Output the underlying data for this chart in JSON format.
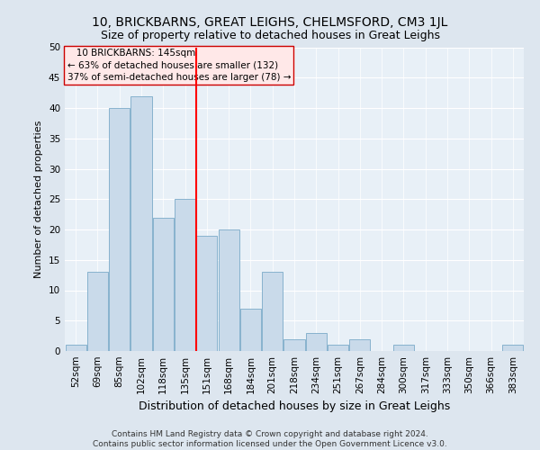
{
  "title": "10, BRICKBARNS, GREAT LEIGHS, CHELMSFORD, CM3 1JL",
  "subtitle": "Size of property relative to detached houses in Great Leighs",
  "xlabel": "Distribution of detached houses by size in Great Leighs",
  "ylabel": "Number of detached properties",
  "footnote1": "Contains HM Land Registry data © Crown copyright and database right 2024.",
  "footnote2": "Contains public sector information licensed under the Open Government Licence v3.0.",
  "annotation_line1": "   10 BRICKBARNS: 145sqm",
  "annotation_line2": "← 63% of detached houses are smaller (132)",
  "annotation_line3": "37% of semi-detached houses are larger (78) →",
  "bar_categories": [
    "52sqm",
    "69sqm",
    "85sqm",
    "102sqm",
    "118sqm",
    "135sqm",
    "151sqm",
    "168sqm",
    "184sqm",
    "201sqm",
    "218sqm",
    "234sqm",
    "251sqm",
    "267sqm",
    "284sqm",
    "300sqm",
    "317sqm",
    "333sqm",
    "350sqm",
    "366sqm",
    "383sqm"
  ],
  "bar_values": [
    1,
    13,
    40,
    42,
    22,
    25,
    19,
    20,
    7,
    13,
    2,
    3,
    1,
    2,
    0,
    1,
    0,
    0,
    0,
    0,
    1
  ],
  "bar_color": "#c9daea",
  "bar_edge_color": "#7aaac8",
  "vline_x_index": 6,
  "vline_color": "red",
  "ylim": [
    0,
    50
  ],
  "yticks": [
    0,
    5,
    10,
    15,
    20,
    25,
    30,
    35,
    40,
    45,
    50
  ],
  "bg_color": "#dde6ef",
  "plot_bg_color": "#e8f0f7",
  "grid_color": "#ffffff",
  "annotation_box_facecolor": "#ffe8e8",
  "annotation_box_edgecolor": "#cc0000",
  "title_fontsize": 10,
  "subtitle_fontsize": 9,
  "ylabel_fontsize": 8,
  "xlabel_fontsize": 9,
  "tick_fontsize": 7.5,
  "annotation_fontsize": 7.5,
  "footnote_fontsize": 6.5
}
